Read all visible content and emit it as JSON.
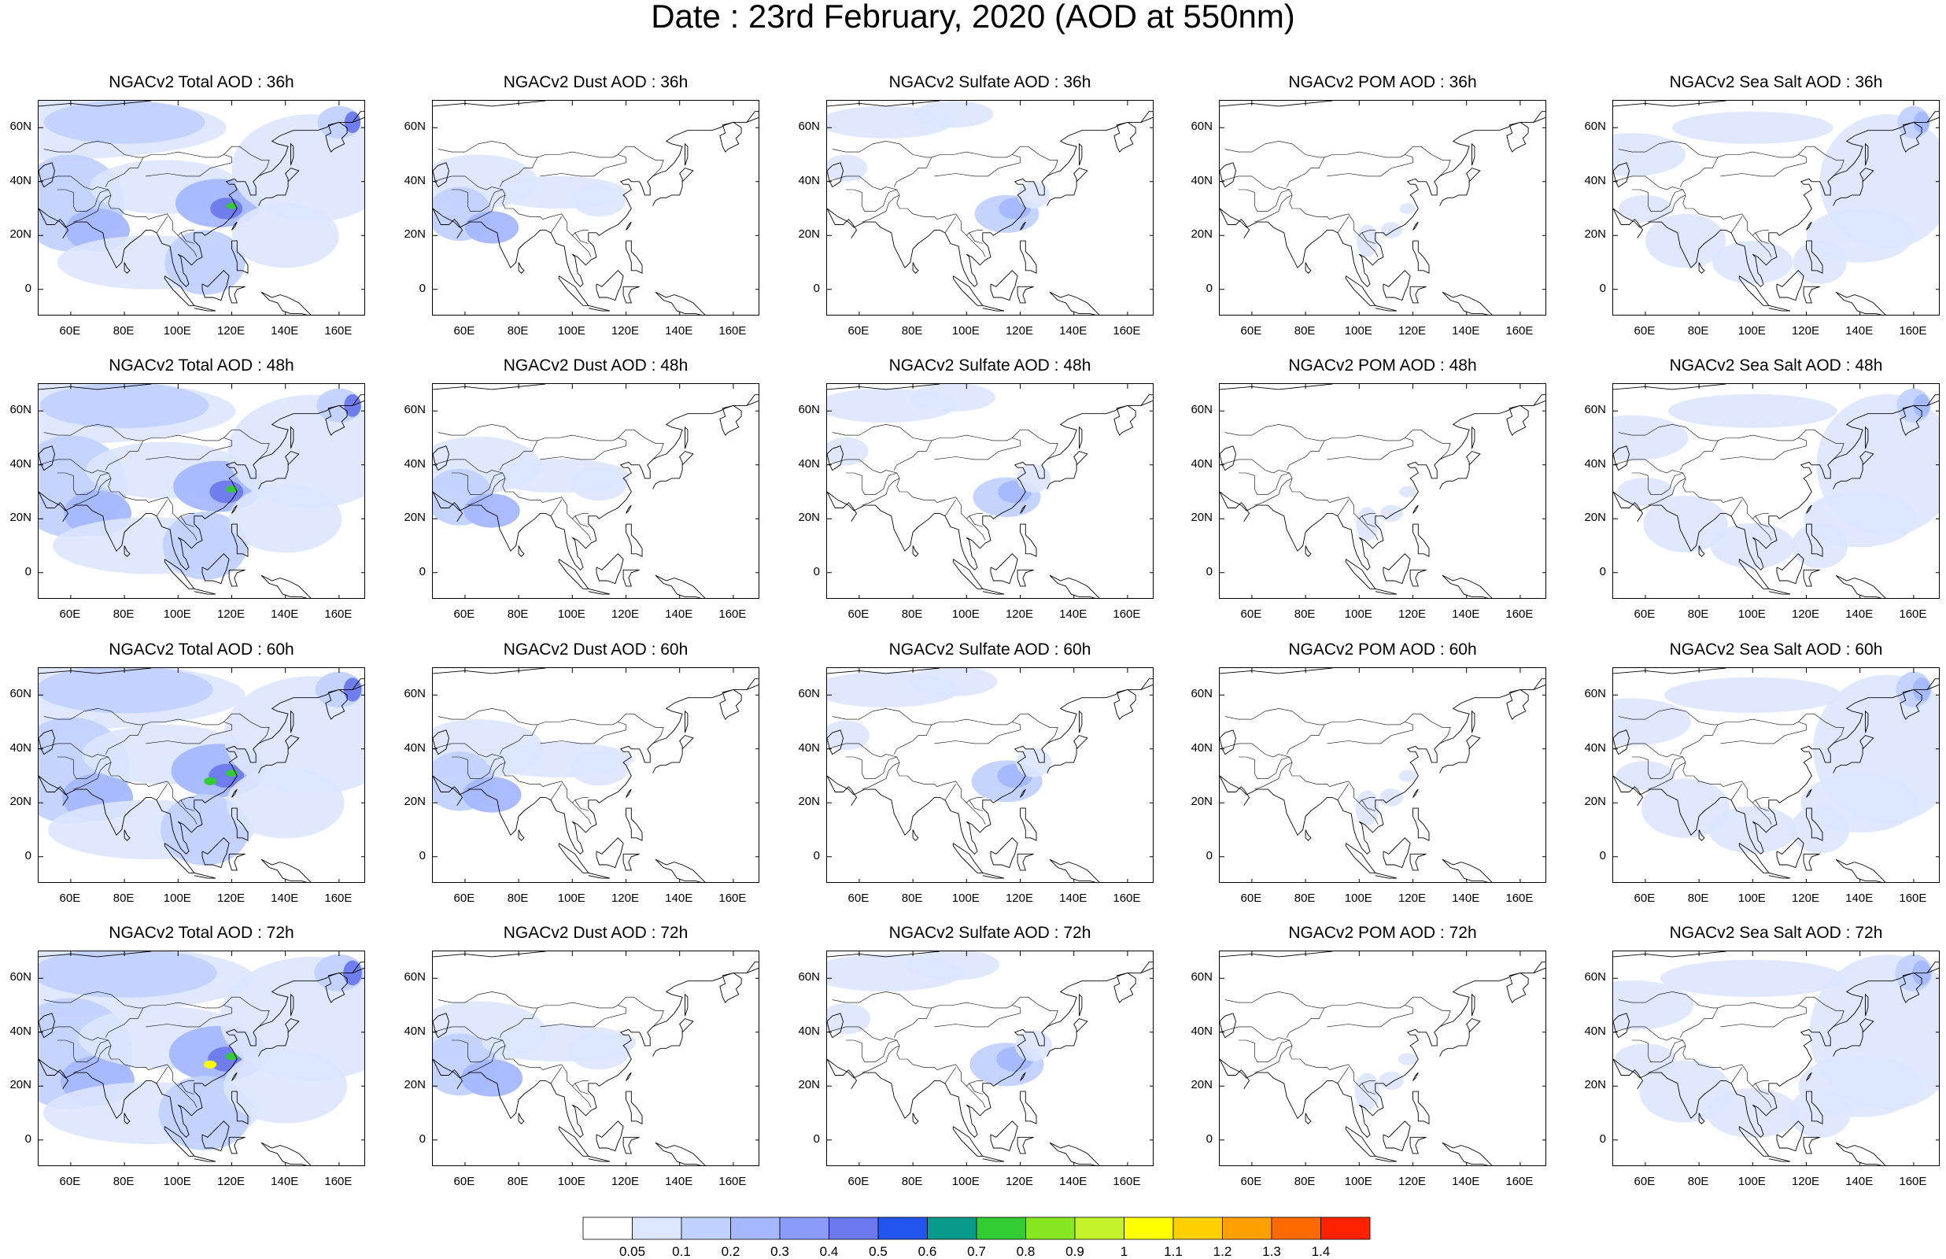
{
  "page": {
    "title": "Date : 23rd February, 2020 (AOD at 550nm)"
  },
  "axes": {
    "lat_ticks": [
      "60N",
      "40N",
      "20N",
      "0"
    ],
    "lon_ticks": [
      "60E",
      "80E",
      "100E",
      "120E",
      "140E",
      "160E"
    ]
  },
  "rows": [
    {
      "hour": "36h",
      "titles": [
        "NGACv2 Total AOD : 36h",
        "NGACv2 Dust AOD : 36h",
        "NGACv2 Sulfate AOD : 36h",
        "NGACv2 POM AOD : 36h",
        "NGACv2 Sea Salt AOD : 36h"
      ]
    },
    {
      "hour": "48h",
      "titles": [
        "NGACv2 Total AOD : 48h",
        "NGACv2 Dust AOD : 48h",
        "NGACv2 Sulfate AOD : 48h",
        "NGACv2 POM AOD : 48h",
        "NGACv2 Sea Salt AOD : 48h"
      ]
    },
    {
      "hour": "60h",
      "titles": [
        "NGACv2 Total AOD : 60h",
        "NGACv2 Dust AOD : 60h",
        "NGACv2 Sulfate AOD : 60h",
        "NGACv2 POM AOD : 60h",
        "NGACv2 Sea Salt AOD : 60h"
      ]
    },
    {
      "hour": "72h",
      "titles": [
        "NGACv2 Total AOD : 72h",
        "NGACv2 Dust AOD : 72h",
        "NGACv2 Sulfate AOD : 72h",
        "NGACv2 POM AOD : 72h",
        "NGACv2 Sea Salt  AOD : 72h"
      ]
    }
  ],
  "colorbar": {
    "labels": [
      "0.05",
      "0.1",
      "0.2",
      "0.3",
      "0.4",
      "0.5",
      "0.6",
      "0.7",
      "0.8",
      "0.9",
      "1",
      "1.1",
      "1.2",
      "1.3",
      "1.4"
    ],
    "colors": [
      "#ffffff",
      "#dde6ff",
      "#c1d1ff",
      "#a5b8ff",
      "#8a9cf8",
      "#6b79ec",
      "#2255ee",
      "#0a9a8a",
      "#33cc33",
      "#88e620",
      "#c4f22a",
      "#ffff00",
      "#ffd000",
      "#ffa000",
      "#ff6a00",
      "#ff2200"
    ]
  },
  "map_style": {
    "land_outline": "#000000",
    "field_colors": {
      "low": "#dde6ff",
      "mid": "#c1d1ff",
      "high": "#a5b8ff",
      "peak": "#6b79ec",
      "hot": "#33cc33",
      "hotter": "#ffff00"
    }
  }
}
